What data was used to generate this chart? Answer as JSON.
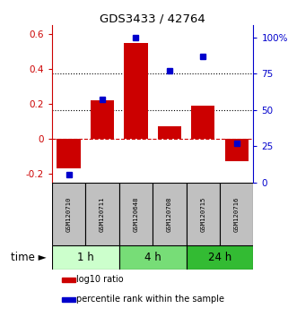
{
  "title": "GDS3433 / 42764",
  "samples": [
    "GSM120710",
    "GSM120711",
    "GSM120648",
    "GSM120708",
    "GSM120715",
    "GSM120716"
  ],
  "log10_ratio": [
    -0.17,
    0.22,
    0.55,
    0.07,
    0.19,
    -0.13
  ],
  "percentile_rank": [
    5,
    57,
    100,
    77,
    87,
    27
  ],
  "bar_color": "#cc0000",
  "dot_color": "#0000cc",
  "left_ylim": [
    -0.25,
    0.65
  ],
  "left_yticks": [
    -0.2,
    0.0,
    0.2,
    0.4,
    0.6
  ],
  "left_yticklabels": [
    "-0.2",
    "0",
    "0.2",
    "0.4",
    "0.6"
  ],
  "right_ylim": [
    0,
    108.33
  ],
  "right_yticks": [
    0,
    25,
    50,
    75,
    100
  ],
  "right_yticklabels": [
    "0",
    "25",
    "50",
    "75",
    "100%"
  ],
  "hlines_pct": [
    50,
    75
  ],
  "hline_zero_color": "#cc0000",
  "hline_zero_style": "--",
  "hline_grid_style": ":",
  "hline_grid_color": "black",
  "time_groups": [
    {
      "label": "1 h",
      "indices": [
        0,
        1
      ],
      "color": "#ccffcc"
    },
    {
      "label": "4 h",
      "indices": [
        2,
        3
      ],
      "color": "#77dd77"
    },
    {
      "label": "24 h",
      "indices": [
        4,
        5
      ],
      "color": "#33bb33"
    }
  ],
  "legend_items": [
    {
      "label": "log10 ratio",
      "color": "#cc0000"
    },
    {
      "label": "percentile rank within the sample",
      "color": "#0000cc"
    }
  ],
  "time_label": "time",
  "sample_box_color": "#c0c0c0",
  "background_color": "#ffffff",
  "bar_width": 0.7
}
